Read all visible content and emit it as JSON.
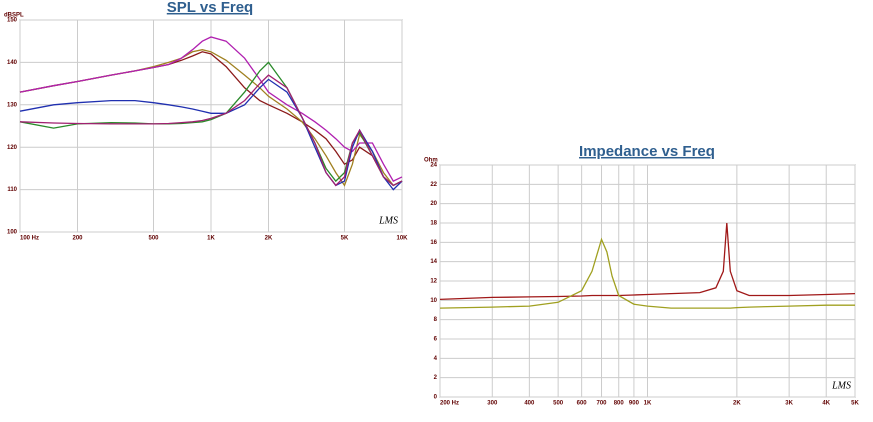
{
  "chart_data": [
    {
      "type": "line",
      "title": "SPL vs Freq",
      "ylabel": "dBSPL",
      "watermark": "LMS",
      "xscale": "log",
      "grid": true,
      "x": [
        100,
        150,
        200,
        300,
        400,
        500,
        600,
        700,
        800,
        900,
        1000,
        1200,
        1500,
        1800,
        2000,
        2500,
        3000,
        3500,
        4000,
        4500,
        5000,
        5500,
        6000,
        7000,
        8000,
        9000,
        10000
      ],
      "xlim": [
        100,
        10000
      ],
      "xticks": [
        {
          "value": 100,
          "label": "100 Hz"
        },
        200,
        500,
        {
          "value": 1000,
          "label": "1K"
        },
        {
          "value": 2000,
          "label": "2K"
        },
        {
          "value": 5000,
          "label": "5K"
        },
        {
          "value": 10000,
          "label": "10K"
        }
      ],
      "ylim": [
        100,
        150
      ],
      "yticks": [
        100,
        110,
        120,
        130,
        140,
        150
      ],
      "series": [
        {
          "color": "#8b1a1a",
          "values": [
            133,
            134.5,
            135.5,
            137,
            138,
            138.8,
            139.5,
            140.5,
            141.5,
            142.5,
            142,
            139,
            134,
            131,
            130,
            128,
            126,
            124,
            122,
            119,
            116,
            117,
            120,
            118,
            113,
            111,
            112
          ]
        },
        {
          "color": "#a08020",
          "values": [
            133,
            134.5,
            135.5,
            137,
            138,
            139,
            140,
            141,
            142.5,
            143,
            142.5,
            140.5,
            137,
            134,
            132,
            129,
            126,
            122,
            118,
            114,
            111,
            116,
            123,
            119,
            114,
            111,
            112
          ]
        },
        {
          "color": "#b020b0",
          "values": [
            133,
            134.5,
            135.5,
            137,
            138,
            138.8,
            139.5,
            141,
            143,
            145,
            146,
            145,
            141,
            136,
            133,
            130,
            128,
            126,
            124,
            122,
            120,
            119,
            121,
            121,
            116,
            112,
            113
          ]
        },
        {
          "color": "#2a8a2a",
          "values": [
            126,
            124.5,
            125.5,
            125.8,
            125.7,
            125.5,
            125.5,
            125.6,
            125.8,
            126,
            126.5,
            128,
            133,
            138,
            140,
            134,
            127,
            121,
            115,
            112,
            114,
            121,
            123.5,
            118,
            113,
            111,
            112
          ]
        },
        {
          "color": "#2030b0",
          "values": [
            128.5,
            130,
            130.5,
            131,
            131,
            130.5,
            130,
            129.5,
            129,
            128.5,
            128,
            128,
            130,
            134,
            136,
            133,
            127,
            120,
            114,
            111,
            112,
            120,
            124,
            119,
            113,
            110,
            112
          ]
        },
        {
          "color": "#a02070",
          "values": [
            126,
            125.7,
            125.6,
            125.5,
            125.5,
            125.5,
            125.6,
            125.8,
            126,
            126.3,
            126.8,
            128,
            131,
            135,
            137,
            134,
            127,
            121,
            114,
            111,
            113,
            121,
            124,
            118,
            113,
            111,
            112
          ]
        }
      ]
    },
    {
      "type": "line",
      "title": "Impedance vs Freq",
      "ylabel": "Ohm",
      "watermark": "LMS",
      "xscale": "log",
      "grid": true,
      "x": [
        200,
        300,
        400,
        500,
        600,
        650,
        700,
        730,
        760,
        800,
        900,
        1000,
        1200,
        1500,
        1700,
        1800,
        1850,
        1900,
        2000,
        2200,
        3000,
        4000,
        5000
      ],
      "xlim": [
        200,
        5000
      ],
      "xticks": [
        {
          "value": 200,
          "label": "200 Hz"
        },
        300,
        400,
        500,
        600,
        700,
        800,
        900,
        {
          "value": 1000,
          "label": "1K"
        },
        {
          "value": 2000,
          "label": "2K"
        },
        {
          "value": 3000,
          "label": "3K"
        },
        {
          "value": 4000,
          "label": "4K"
        },
        {
          "value": 5000,
          "label": "5K"
        }
      ],
      "ylim": [
        0,
        24
      ],
      "yticks": [
        0,
        2,
        4,
        6,
        8,
        10,
        12,
        14,
        16,
        18,
        20,
        22,
        24
      ],
      "series": [
        {
          "color": "#a01818",
          "values": [
            10.1,
            10.3,
            10.35,
            10.4,
            10.45,
            10.5,
            10.5,
            10.5,
            10.5,
            10.5,
            10.55,
            10.6,
            10.7,
            10.8,
            11.3,
            13,
            18,
            13,
            11,
            10.5,
            10.5,
            10.6,
            10.7
          ]
        },
        {
          "color": "#a0a020",
          "values": [
            9.2,
            9.3,
            9.4,
            9.8,
            11,
            13,
            16.3,
            15,
            12.5,
            10.5,
            9.6,
            9.4,
            9.2,
            9.2,
            9.2,
            9.2,
            9.2,
            9.2,
            9.25,
            9.3,
            9.4,
            9.5,
            9.5
          ]
        }
      ]
    }
  ]
}
